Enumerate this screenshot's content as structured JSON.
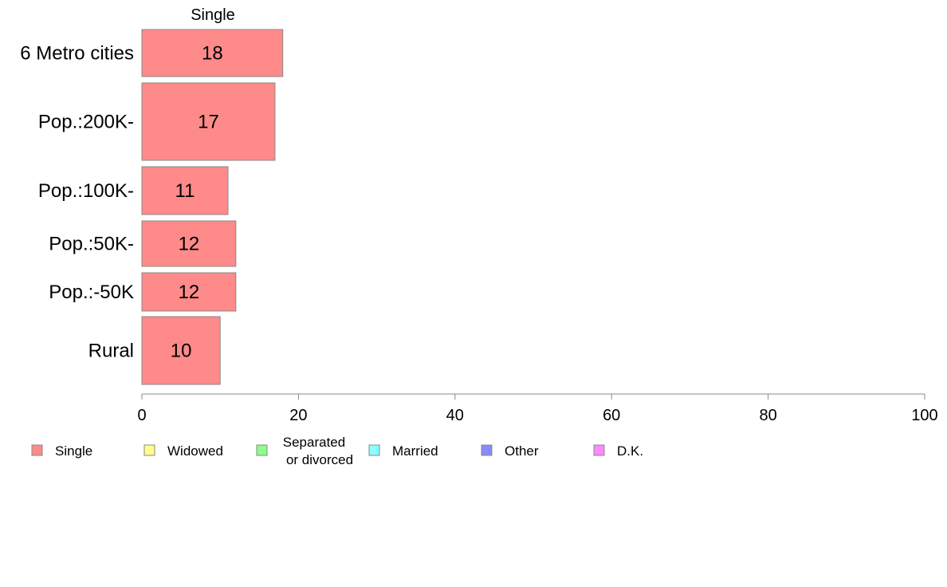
{
  "chart_data": {
    "type": "bar",
    "orientation": "horizontal",
    "title": "Single",
    "categories": [
      "6 Metro cities",
      "Pop.:200K-",
      "Pop.:100K-",
      "Pop.:50K-",
      "Pop.:-50K",
      "Rural"
    ],
    "series": [
      {
        "name": "Single",
        "values": [
          18,
          17,
          11,
          12,
          12,
          10
        ],
        "color": "#ff8a8a"
      }
    ],
    "xlim": [
      0,
      100
    ],
    "xticks": [
      0,
      20,
      40,
      60,
      80,
      100
    ],
    "grid": false,
    "legend": {
      "placement": "bottom-left",
      "items": [
        {
          "label": "Single",
          "color": "#ff8a8a"
        },
        {
          "label": "Widowed",
          "color": "#ffff8a"
        },
        {
          "label": [
            "Separated",
            "or divorced"
          ],
          "color": "#8aff8a"
        },
        {
          "label": "Married",
          "color": "#8affff"
        },
        {
          "label": "Other",
          "color": "#8a8aff"
        },
        {
          "label": "D.K.",
          "color": "#ff8aff"
        }
      ]
    }
  }
}
